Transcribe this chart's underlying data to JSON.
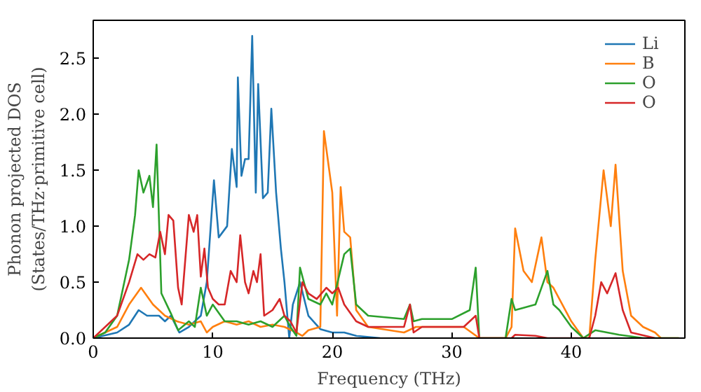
{
  "chart_data": {
    "type": "line",
    "xlabel": "Frequency (THz)",
    "ylabel": "Phonon projected DOS\n(States/THz·primitive cell)",
    "xlim": [
      0,
      49.5
    ],
    "ylim": [
      0,
      2.84
    ],
    "xticks": [
      0,
      10,
      20,
      30,
      40
    ],
    "yticks": [
      {
        "value": 0,
        "label": "0.0"
      },
      {
        "value": 0.5,
        "label": "0.5"
      },
      {
        "value": 1,
        "label": "1.0"
      },
      {
        "value": 1.5,
        "label": "1.5"
      },
      {
        "value": 2,
        "label": "2.0"
      },
      {
        "value": 2.5,
        "label": "2.5"
      }
    ],
    "grid": false,
    "legend": "top right",
    "marker": "none",
    "line_style": "solid",
    "series": [
      {
        "name": "Li",
        "color": "#1f77b4",
        "x": [
          0,
          2,
          3,
          3.8,
          4.5,
          5.5,
          6,
          6.5,
          7.2,
          8,
          8.5,
          9,
          9.5,
          10.1,
          10.5,
          11.2,
          11.6,
          12.0,
          12.1,
          12.4,
          12.7,
          13.0,
          13.3,
          13.6,
          13.8,
          14.2,
          14.6,
          14.9,
          15.3,
          15.7,
          16,
          16.4,
          16.7,
          17.3,
          18,
          19,
          20,
          21,
          22,
          24
        ],
        "values": [
          0,
          0.05,
          0.12,
          0.25,
          0.2,
          0.2,
          0.15,
          0.2,
          0.05,
          0.1,
          0.15,
          0.2,
          0.5,
          1.41,
          0.9,
          1.0,
          1.69,
          1.35,
          2.33,
          1.45,
          1.6,
          1.6,
          2.7,
          1.3,
          2.27,
          1.25,
          1.3,
          2.05,
          1.3,
          0.8,
          0.5,
          0.0,
          0.3,
          0.5,
          0.2,
          0.08,
          0.05,
          0.05,
          0.02,
          0
        ]
      },
      {
        "name": "B",
        "color": "#ff7f0e",
        "x": [
          0,
          2,
          3,
          4,
          5,
          6,
          7,
          8,
          9,
          9.5,
          10,
          11,
          12,
          13,
          14,
          15,
          16,
          17,
          17.5,
          18,
          19,
          19.3,
          20,
          20.4,
          20.7,
          21,
          21.5,
          22,
          23,
          26,
          27,
          31,
          32.3,
          34.5,
          35,
          35.3,
          36,
          36.7,
          37.5,
          38,
          38.5,
          39,
          40,
          41,
          41.5,
          42,
          42.7,
          43.3,
          43.7,
          44.3,
          45,
          46,
          47,
          47.5,
          49
        ],
        "values": [
          0,
          0.1,
          0.3,
          0.45,
          0.3,
          0.2,
          0.15,
          0.12,
          0.15,
          0.05,
          0.1,
          0.15,
          0.12,
          0.15,
          0.1,
          0.12,
          0.1,
          0.05,
          0.02,
          0.07,
          0.1,
          1.85,
          1.3,
          0.2,
          1.35,
          0.95,
          0.9,
          0.25,
          0.1,
          0.05,
          0.1,
          0.1,
          0,
          0,
          0.1,
          0.98,
          0.6,
          0.5,
          0.9,
          0.5,
          0.45,
          0.35,
          0.15,
          0,
          0,
          0.7,
          1.5,
          1.0,
          1.55,
          0.6,
          0.2,
          0.1,
          0.05,
          0,
          0
        ]
      },
      {
        "name": "O",
        "color": "#2ca02c",
        "x": [
          0,
          1,
          2,
          2.5,
          3,
          3.5,
          3.8,
          4.2,
          4.7,
          5.0,
          5.3,
          5.7,
          6.5,
          7.1,
          8,
          8.5,
          9,
          9.5,
          10,
          11,
          12,
          13,
          14,
          15,
          16,
          16.5,
          17,
          17.3,
          18,
          19,
          19.5,
          20,
          21,
          21.5,
          22,
          23,
          26,
          26.5,
          26.8,
          27.5,
          30,
          31.5,
          32,
          32.3,
          34.5,
          35,
          35.3,
          36,
          37,
          37.5,
          38,
          38.5,
          39,
          40,
          41,
          42,
          43,
          44,
          46,
          49
        ],
        "values": [
          0,
          0.05,
          0.2,
          0.45,
          0.7,
          1.1,
          1.5,
          1.3,
          1.45,
          1.17,
          1.73,
          0.4,
          0.22,
          0.07,
          0.15,
          0.1,
          0.45,
          0.2,
          0.3,
          0.15,
          0.15,
          0.12,
          0.15,
          0.1,
          0.2,
          0.1,
          0.02,
          0.63,
          0.35,
          0.3,
          0.4,
          0.3,
          0.75,
          0.8,
          0.3,
          0.2,
          0.17,
          0.3,
          0.15,
          0.17,
          0.17,
          0.25,
          0.63,
          0,
          0,
          0.35,
          0.25,
          0.27,
          0.3,
          0.45,
          0.6,
          0.3,
          0.25,
          0.1,
          0,
          0.07,
          0.05,
          0.03,
          0,
          0
        ]
      },
      {
        "name": "O",
        "color": "#d62728",
        "x": [
          0,
          2,
          3,
          3.7,
          4.2,
          4.7,
          5.2,
          5.6,
          6,
          6.3,
          6.7,
          7.1,
          7.4,
          8,
          8.4,
          8.7,
          9,
          9.3,
          9.6,
          10,
          10.5,
          11,
          11.5,
          12,
          12.3,
          12.7,
          13,
          13.4,
          13.7,
          14,
          14.3,
          15,
          15.6,
          16,
          16.5,
          17,
          17.5,
          18,
          18.7,
          19.5,
          20,
          20.5,
          21,
          22,
          23,
          26,
          26.5,
          26.8,
          27.5,
          31,
          32,
          32.3,
          35,
          35.3,
          37,
          38,
          41.5,
          42,
          42.5,
          43.0,
          43.7,
          44.3,
          45,
          47
        ],
        "values": [
          0,
          0.2,
          0.5,
          0.75,
          0.7,
          0.75,
          0.72,
          0.95,
          0.75,
          1.1,
          1.05,
          0.45,
          0.3,
          1.1,
          0.95,
          1.1,
          0.55,
          0.8,
          0.45,
          0.35,
          0.3,
          0.3,
          0.6,
          0.5,
          0.92,
          0.5,
          0.4,
          0.6,
          0.5,
          0.75,
          0.2,
          0.25,
          0.35,
          0.2,
          0.15,
          0.05,
          0.5,
          0.4,
          0.35,
          0.45,
          0.4,
          0.45,
          0.3,
          0.15,
          0.1,
          0.1,
          0.3,
          0.05,
          0.1,
          0.1,
          0.2,
          0,
          0,
          0.03,
          0.02,
          0,
          0,
          0.2,
          0.5,
          0.4,
          0.58,
          0.25,
          0.05,
          0
        ]
      }
    ]
  }
}
